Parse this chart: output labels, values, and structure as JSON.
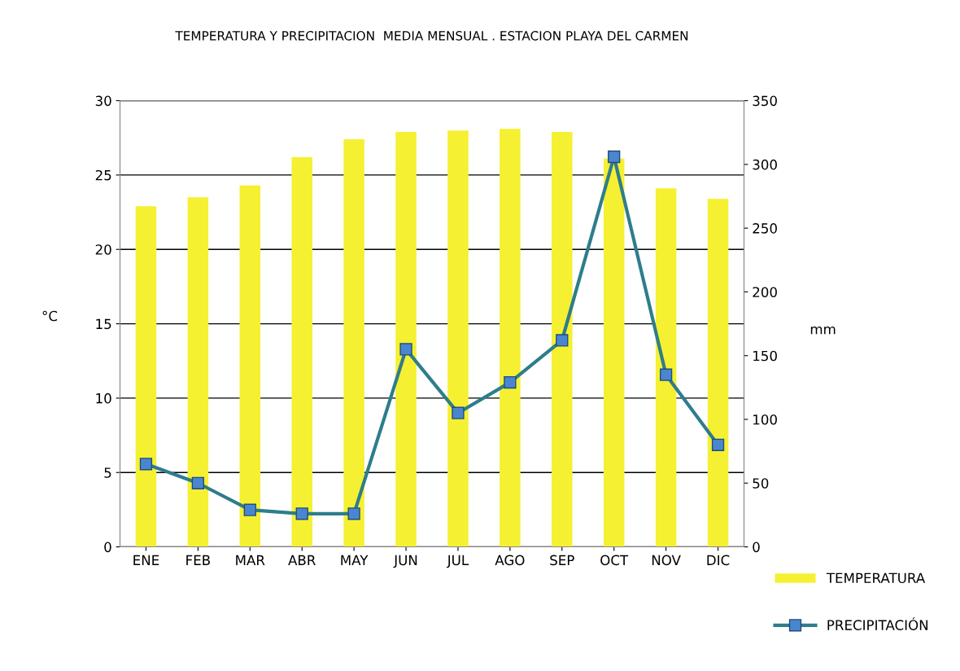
{
  "chart_data": {
    "type": "bar",
    "title": "TEMPERATURA Y PRECIPITACION  MEDIA MENSUAL . ESTACION PLAYA DEL CARMEN",
    "categories": [
      "ENE",
      "FEB",
      "MAR",
      "ABR",
      "MAY",
      "JUN",
      "JUL",
      "AGO",
      "SEP",
      "OCT",
      "NOV",
      "DIC"
    ],
    "series": [
      {
        "name": "TEMPERATURA",
        "color": "#f5f032",
        "values": [
          22.9,
          23.5,
          24.3,
          26.2,
          27.4,
          27.9,
          28.0,
          28.1,
          27.9,
          26.1,
          24.1,
          23.4
        ]
      },
      {
        "name": "PRECIPITACIÓN",
        "type": "line",
        "axis": "y2",
        "color": "#2e7d8c",
        "marker": "square",
        "values": [
          65,
          50,
          29,
          26,
          26,
          155,
          105,
          129,
          162,
          306,
          135,
          80
        ]
      }
    ],
    "ylabel": "°C",
    "y2label": "mm",
    "ylim": [
      0,
      30
    ],
    "yticks": [
      0,
      5,
      10,
      15,
      20,
      25,
      30
    ],
    "y2lim": [
      0,
      350
    ],
    "y2ticks": [
      0,
      50,
      100,
      150,
      200,
      250,
      300,
      350
    ],
    "grid": "y",
    "legend": "bottom right"
  }
}
